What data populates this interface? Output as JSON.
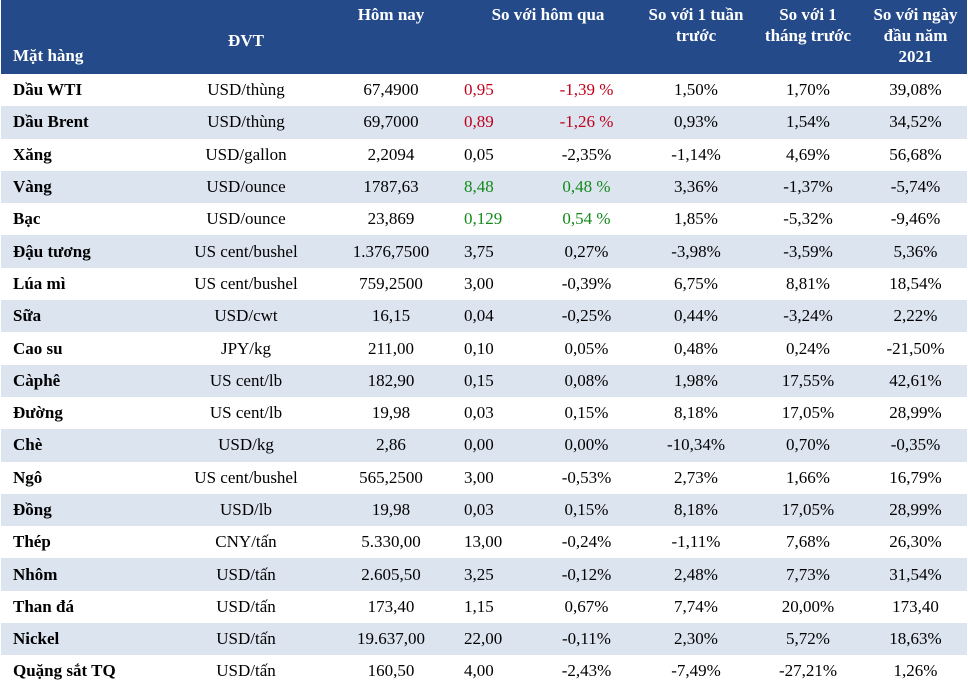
{
  "headers": {
    "item": "Mặt hàng",
    "unit": "ĐVT",
    "today": "Hôm nay",
    "vs_yesterday": "So với hôm qua",
    "vs_week": "So với 1 tuần trước",
    "vs_month": "So với 1 tháng trước",
    "vs_year_start": "So với ngày đầu năm 2021"
  },
  "colors": {
    "header_bg": "#244a8a",
    "stripe": "#dce4f0",
    "up": "#138a1a",
    "down": "#c0001a"
  },
  "rows": [
    {
      "item": "Dầu WTI",
      "unit": "USD/thùng",
      "today": "67,4900",
      "chg": "0,95",
      "chg_pct": "-1,39 %",
      "week": "1,50%",
      "month": "1,70%",
      "ytd": "39,08%",
      "tone": "red"
    },
    {
      "item": "Dầu Brent",
      "unit": "USD/thùng",
      "today": "69,7000",
      "chg": "0,89",
      "chg_pct": "-1,26 %",
      "week": "0,93%",
      "month": "1,54%",
      "ytd": "34,52%",
      "tone": "red"
    },
    {
      "item": "Xăng",
      "unit": "USD/gallon",
      "today": "2,2094",
      "chg": "0,05",
      "chg_pct": "-2,35%",
      "week": "-1,14%",
      "month": "4,69%",
      "ytd": "56,68%",
      "tone": ""
    },
    {
      "item": "Vàng",
      "unit": "USD/ounce",
      "today": "1787,63",
      "chg": "8,48",
      "chg_pct": "0,48 %",
      "week": "3,36%",
      "month": "-1,37%",
      "ytd": "-5,74%",
      "tone": "green"
    },
    {
      "item": "Bạc",
      "unit": "USD/ounce",
      "today": "23,869",
      "chg": "0,129",
      "chg_pct": "0,54 %",
      "week": "1,85%",
      "month": "-5,32%",
      "ytd": "-9,46%",
      "tone": "green"
    },
    {
      "item": "Đậu tương",
      "unit": "US cent/bushel",
      "today": "1.376,7500",
      "chg": "3,75",
      "chg_pct": "0,27%",
      "week": "-3,98%",
      "month": "-3,59%",
      "ytd": "5,36%",
      "tone": ""
    },
    {
      "item": "Lúa mì",
      "unit": "US cent/bushel",
      "today": "759,2500",
      "chg": "3,00",
      "chg_pct": "-0,39%",
      "week": "6,75%",
      "month": "8,81%",
      "ytd": "18,54%",
      "tone": ""
    },
    {
      "item": "Sữa",
      "unit": "USD/cwt",
      "today": "16,15",
      "chg": "0,04",
      "chg_pct": "-0,25%",
      "week": "0,44%",
      "month": "-3,24%",
      "ytd": "2,22%",
      "tone": ""
    },
    {
      "item": "Cao su",
      "unit": "JPY/kg",
      "today": "211,00",
      "chg": "0,10",
      "chg_pct": "0,05%",
      "week": "0,48%",
      "month": "0,24%",
      "ytd": "-21,50%",
      "tone": ""
    },
    {
      "item": "Càphê",
      "unit": "US cent/lb",
      "today": "182,90",
      "chg": "0,15",
      "chg_pct": "0,08%",
      "week": "1,98%",
      "month": "17,55%",
      "ytd": "42,61%",
      "tone": ""
    },
    {
      "item": "Đường",
      "unit": "US cent/lb",
      "today": "19,98",
      "chg": "0,03",
      "chg_pct": "0,15%",
      "week": "8,18%",
      "month": "17,05%",
      "ytd": "28,99%",
      "tone": ""
    },
    {
      "item": "Chè",
      "unit": "USD/kg",
      "today": "2,86",
      "chg": "0,00",
      "chg_pct": "0,00%",
      "week": "-10,34%",
      "month": "0,70%",
      "ytd": "-0,35%",
      "tone": ""
    },
    {
      "item": "Ngô",
      "unit": "US cent/bushel",
      "today": "565,2500",
      "chg": "3,00",
      "chg_pct": "-0,53%",
      "week": "2,73%",
      "month": "1,66%",
      "ytd": "16,79%",
      "tone": ""
    },
    {
      "item": "Đồng",
      "unit": "USD/lb",
      "today": "19,98",
      "chg": "0,03",
      "chg_pct": "0,15%",
      "week": "8,18%",
      "month": "17,05%",
      "ytd": "28,99%",
      "tone": ""
    },
    {
      "item": "Thép",
      "unit": "CNY/tấn",
      "today": "5.330,00",
      "chg": "13,00",
      "chg_pct": "-0,24%",
      "week": "-1,11%",
      "month": "7,68%",
      "ytd": "26,30%",
      "tone": ""
    },
    {
      "item": "Nhôm",
      "unit": "USD/tấn",
      "today": "2.605,50",
      "chg": "3,25",
      "chg_pct": "-0,12%",
      "week": "2,48%",
      "month": "7,73%",
      "ytd": "31,54%",
      "tone": ""
    },
    {
      "item": "Than đá",
      "unit": "USD/tấn",
      "today": "173,40",
      "chg": "1,15",
      "chg_pct": "0,67%",
      "week": "7,74%",
      "month": "20,00%",
      "ytd": "173,40",
      "tone": ""
    },
    {
      "item": "Nickel",
      "unit": "USD/tấn",
      "today": "19.637,00",
      "chg": "22,00",
      "chg_pct": "-0,11%",
      "week": "2,30%",
      "month": "5,72%",
      "ytd": "18,63%",
      "tone": ""
    },
    {
      "item": "Quặng sắt TQ",
      "unit": "USD/tấn",
      "today": "160,50",
      "chg": "4,00",
      "chg_pct": "-2,43%",
      "week": "-7,49%",
      "month": "-27,21%",
      "ytd": "1,26%",
      "tone": ""
    }
  ]
}
